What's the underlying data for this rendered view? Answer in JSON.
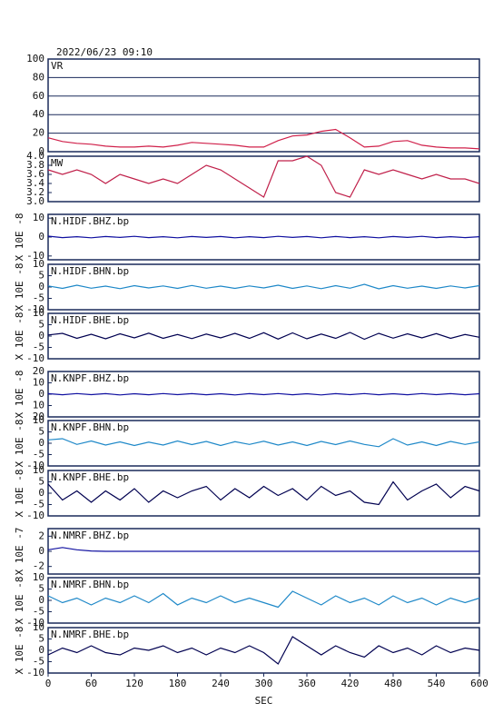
{
  "chart_data": [
    {
      "type": "line",
      "title": "2022/06/23 09:10",
      "x": [
        0,
        20,
        40,
        60,
        80,
        100,
        120,
        140,
        160,
        180,
        200,
        220,
        240,
        260,
        280,
        300,
        320,
        340,
        360,
        380,
        400,
        420,
        440,
        460,
        480,
        500,
        520,
        540,
        560,
        580,
        600
      ],
      "xlim": [
        0,
        600
      ],
      "ylim": [
        0,
        100
      ],
      "yticks": [
        0,
        20,
        40,
        60,
        80,
        100
      ],
      "grid": true,
      "series": [
        {
          "name": "VR",
          "color": "#d0204a",
          "values": [
            15,
            11,
            9,
            8,
            6,
            5,
            5,
            6,
            5,
            7,
            10,
            9,
            8,
            7,
            5,
            5,
            12,
            17,
            18,
            22,
            24,
            15,
            5,
            6,
            11,
            12,
            7,
            5,
            4,
            4,
            3
          ]
        }
      ]
    },
    {
      "type": "line",
      "x": [
        0,
        20,
        40,
        60,
        80,
        100,
        120,
        140,
        160,
        180,
        200,
        220,
        240,
        260,
        280,
        300,
        320,
        340,
        360,
        380,
        400,
        420,
        440,
        460,
        480,
        500,
        520,
        540,
        560,
        580,
        600
      ],
      "xlim": [
        0,
        600
      ],
      "ylim": [
        3,
        4
      ],
      "yticks": [
        {
          "value": 3,
          "label": "3.0"
        },
        3.2,
        3.4,
        3.6,
        3.8,
        {
          "value": 4,
          "label": "4.0"
        }
      ],
      "grid": false,
      "series": [
        {
          "name": "MW",
          "color": "#c0204a",
          "values": [
            3.7,
            3.6,
            3.7,
            3.6,
            3.4,
            3.6,
            3.5,
            3.4,
            3.5,
            3.4,
            3.6,
            3.8,
            3.7,
            3.5,
            3.3,
            3.1,
            3.9,
            3.9,
            4.0,
            3.8,
            3.2,
            3.1,
            3.7,
            3.6,
            3.7,
            3.6,
            3.5,
            3.6,
            3.5,
            3.5,
            3.4
          ]
        }
      ]
    },
    {
      "type": "line",
      "ylabel": "X 10E -8",
      "x": [
        0,
        20,
        40,
        60,
        80,
        100,
        120,
        140,
        160,
        180,
        200,
        220,
        240,
        260,
        280,
        300,
        320,
        340,
        360,
        380,
        400,
        420,
        440,
        460,
        480,
        500,
        520,
        540,
        560,
        580,
        600
      ],
      "xlim": [
        0,
        600
      ],
      "ylim": [
        -12,
        12
      ],
      "yticks": [
        10,
        0,
        -10
      ],
      "grid": false,
      "series": [
        {
          "name": "N.HIDF.BHZ.bp",
          "color": "#1010a0",
          "values": [
            0.5,
            -0.3,
            0.2,
            -0.4,
            0.3,
            -0.2,
            0.4,
            -0.3,
            0.2,
            -0.4,
            0.3,
            -0.2,
            0.3,
            -0.4,
            0.2,
            -0.3,
            0.4,
            -0.2,
            0.3,
            -0.4,
            0.3,
            -0.3,
            0.2,
            -0.4,
            0.3,
            -0.2,
            0.4,
            -0.3,
            0.2,
            -0.3,
            0.2
          ]
        }
      ]
    },
    {
      "type": "line",
      "ylabel": "X 10E -8",
      "x": [
        0,
        20,
        40,
        60,
        80,
        100,
        120,
        140,
        160,
        180,
        200,
        220,
        240,
        260,
        280,
        300,
        320,
        340,
        360,
        380,
        400,
        420,
        440,
        460,
        480,
        500,
        520,
        540,
        560,
        580,
        600
      ],
      "xlim": [
        0,
        600
      ],
      "ylim": [
        -10,
        10
      ],
      "yticks": [
        10,
        5,
        0,
        -5,
        -10
      ],
      "grid": false,
      "series": [
        {
          "name": "N.HIDF.BHN.bp",
          "color": "#1e88c8",
          "values": [
            0.5,
            -0.6,
            0.8,
            -0.5,
            0.4,
            -0.7,
            0.6,
            -0.4,
            0.5,
            -0.6,
            0.7,
            -0.5,
            0.4,
            -0.6,
            0.5,
            -0.4,
            0.8,
            -0.6,
            0.5,
            -0.7,
            0.6,
            -0.5,
            1.2,
            -0.8,
            0.6,
            -0.5,
            0.4,
            -0.6,
            0.5,
            -0.4,
            0.6
          ]
        }
      ]
    },
    {
      "type": "line",
      "ylabel": "X 10E -8",
      "x": [
        0,
        20,
        40,
        60,
        80,
        100,
        120,
        140,
        160,
        180,
        200,
        220,
        240,
        260,
        280,
        300,
        320,
        340,
        360,
        380,
        400,
        420,
        440,
        460,
        480,
        500,
        520,
        540,
        560,
        580,
        600
      ],
      "xlim": [
        0,
        600
      ],
      "ylim": [
        -10,
        10
      ],
      "yticks": [
        10,
        5,
        0,
        -5,
        -10
      ],
      "grid": false,
      "series": [
        {
          "name": "N.HIDF.BHE.bp",
          "color": "#000050",
          "values": [
            0.5,
            1.2,
            -1,
            0.8,
            -1.2,
            1,
            -0.8,
            1.3,
            -1,
            0.7,
            -1.1,
            0.9,
            -0.8,
            1.2,
            -1,
            1.5,
            -1.3,
            1.4,
            -1.2,
            0.9,
            -1,
            1.6,
            -1.4,
            1.2,
            -0.9,
            1,
            -0.8,
            1.1,
            -1,
            0.7,
            -0.5
          ]
        }
      ]
    },
    {
      "type": "line",
      "ylabel": "X 10E -8",
      "x": [
        0,
        20,
        40,
        60,
        80,
        100,
        120,
        140,
        160,
        180,
        200,
        220,
        240,
        260,
        280,
        300,
        320,
        340,
        360,
        380,
        400,
        420,
        440,
        460,
        480,
        500,
        520,
        540,
        560,
        580,
        600
      ],
      "xlim": [
        0,
        600
      ],
      "ylim": [
        -20,
        20
      ],
      "yticks": [
        20,
        10,
        0,
        {
          "value": -10,
          "label": "10"
        },
        {
          "value": -20,
          "label": "20"
        }
      ],
      "grid": false,
      "series": [
        {
          "name": "N.KNPF.BHZ.bp",
          "color": "#1010a0",
          "values": [
            0.5,
            -0.5,
            0.6,
            -0.4,
            0.5,
            -0.6,
            0.4,
            -0.5,
            0.6,
            -0.4,
            0.5,
            -0.5,
            0.4,
            -0.6,
            0.5,
            -0.4,
            0.6,
            -0.5,
            0.4,
            -0.6,
            0.5,
            -0.4,
            0.6,
            -0.5,
            0.4,
            -0.5,
            0.6,
            -0.4,
            0.5,
            -0.5,
            0.4
          ]
        }
      ]
    },
    {
      "type": "line",
      "ylabel": "X 10E -8",
      "x": [
        0,
        20,
        40,
        60,
        80,
        100,
        120,
        140,
        160,
        180,
        200,
        220,
        240,
        260,
        280,
        300,
        320,
        340,
        360,
        380,
        400,
        420,
        440,
        460,
        480,
        500,
        520,
        540,
        560,
        580,
        600
      ],
      "xlim": [
        0,
        600
      ],
      "ylim": [
        -10,
        10
      ],
      "yticks": [
        10,
        5,
        0,
        -5,
        -10
      ],
      "grid": false,
      "series": [
        {
          "name": "N.KNPF.BHN.bp",
          "color": "#1e88c8",
          "values": [
            1.5,
            2,
            -0.5,
            1,
            -0.8,
            0.6,
            -1,
            0.5,
            -0.8,
            1,
            -0.6,
            0.8,
            -1,
            0.7,
            -0.5,
            0.9,
            -0.8,
            0.6,
            -1,
            0.8,
            -0.6,
            1,
            -0.5,
            -1.5,
            2,
            -0.8,
            0.6,
            -1,
            0.8,
            -0.5,
            0.6
          ]
        }
      ]
    },
    {
      "type": "line",
      "ylabel": "X 10E -8",
      "x": [
        0,
        20,
        40,
        60,
        80,
        100,
        120,
        140,
        160,
        180,
        200,
        220,
        240,
        260,
        280,
        300,
        320,
        340,
        360,
        380,
        400,
        420,
        440,
        460,
        480,
        500,
        520,
        540,
        560,
        580,
        600
      ],
      "xlim": [
        0,
        600
      ],
      "ylim": [
        -10,
        10
      ],
      "yticks": [
        10,
        5,
        0,
        -5,
        -10
      ],
      "grid": false,
      "series": [
        {
          "name": "N.KNPF.BHE.bp",
          "color": "#000050",
          "values": [
            4,
            -3,
            1,
            -4,
            1,
            -3,
            2,
            -4,
            1,
            -2,
            1,
            3,
            -3,
            2,
            -2,
            3,
            -1,
            2,
            -3,
            3,
            -1,
            1,
            -4,
            -5,
            5,
            -3,
            1,
            4,
            -2,
            3,
            1
          ]
        }
      ]
    },
    {
      "type": "line",
      "ylabel": "X 10E -7",
      "x": [
        0,
        20,
        40,
        60,
        80,
        100,
        120,
        140,
        160,
        180,
        200,
        220,
        240,
        260,
        280,
        300,
        320,
        340,
        360,
        380,
        400,
        420,
        440,
        460,
        480,
        500,
        520,
        540,
        560,
        580,
        600
      ],
      "xlim": [
        0,
        600
      ],
      "ylim": [
        -3,
        3
      ],
      "yticks": [
        2,
        0,
        -2
      ],
      "grid": false,
      "series": [
        {
          "name": "N.NMRF.BHZ.bp",
          "color": "#1010a0",
          "values": [
            0.2,
            0.5,
            0.2,
            0.05,
            0,
            0,
            0,
            0,
            0,
            0,
            0,
            0,
            0,
            0,
            0,
            0,
            0,
            0,
            0,
            0,
            0,
            0,
            0,
            0,
            0,
            0,
            0,
            0,
            0,
            0,
            0
          ]
        }
      ]
    },
    {
      "type": "line",
      "ylabel": "X 10E -8",
      "x": [
        0,
        20,
        40,
        60,
        80,
        100,
        120,
        140,
        160,
        180,
        200,
        220,
        240,
        260,
        280,
        300,
        320,
        340,
        360,
        380,
        400,
        420,
        440,
        460,
        480,
        500,
        520,
        540,
        560,
        580,
        600
      ],
      "xlim": [
        0,
        600
      ],
      "ylim": [
        -10,
        10
      ],
      "yticks": [
        10,
        5,
        0,
        -5,
        -10
      ],
      "grid": false,
      "series": [
        {
          "name": "N.NMRF.BHN.bp",
          "color": "#1e88c8",
          "values": [
            2,
            -1,
            1,
            -2,
            1,
            -1,
            2,
            -1,
            3,
            -2,
            1,
            -1,
            2,
            -1,
            1,
            -1,
            -3,
            4,
            1,
            -2,
            2,
            -1,
            1,
            -2,
            2,
            -1,
            1,
            -2,
            1,
            -1,
            1
          ]
        }
      ]
    },
    {
      "type": "line",
      "ylabel": "X 10E -8",
      "xlabel": "SEC",
      "x": [
        0,
        20,
        40,
        60,
        80,
        100,
        120,
        140,
        160,
        180,
        200,
        220,
        240,
        260,
        280,
        300,
        320,
        340,
        360,
        380,
        400,
        420,
        440,
        460,
        480,
        500,
        520,
        540,
        560,
        580,
        600
      ],
      "xlim": [
        0,
        600
      ],
      "xticks": [
        0,
        60,
        120,
        180,
        240,
        300,
        360,
        420,
        480,
        540,
        600
      ],
      "ylim": [
        -10,
        10
      ],
      "yticks": [
        10,
        5,
        0,
        -5,
        -10
      ],
      "grid": false,
      "series": [
        {
          "name": "N.NMRF.BHE.bp",
          "color": "#000050",
          "values": [
            -2,
            1,
            -1,
            2,
            -1,
            -2,
            1,
            0,
            2,
            -1,
            1,
            -2,
            1,
            -1,
            2,
            -1,
            -6,
            6,
            2,
            -2,
            2,
            -1,
            -3,
            2,
            -1,
            1,
            -2,
            2,
            -1,
            1,
            0
          ]
        }
      ]
    }
  ]
}
